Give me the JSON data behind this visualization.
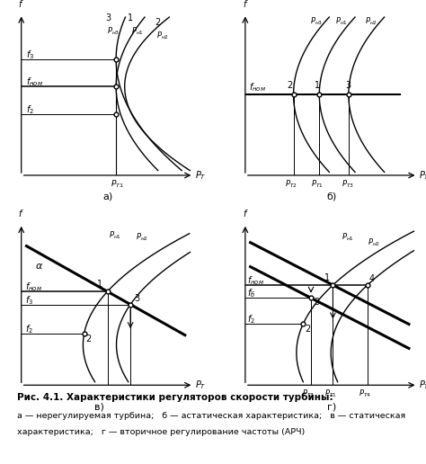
{
  "title": "Рис. 4.1. Характеристики регуляторов скорости турбины:",
  "caption_lines": [
    "а — нерегулируемая турбина;   б — астатическая характеристика;   в — статическая",
    "характеристика;   г — вторичное регулирование частоты (АРЧ)"
  ],
  "sublabels": [
    "а)",
    "б)",
    "в)",
    "г)"
  ],
  "line_color": "black",
  "bg_color": "white"
}
